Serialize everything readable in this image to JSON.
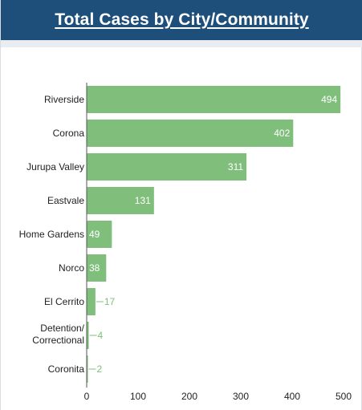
{
  "header": {
    "title": "Total Cases by City/Community"
  },
  "colors": {
    "header_bg": "#1e4f7a",
    "bar": "#7fbf7b",
    "axis": "#555555"
  },
  "chart_data": {
    "type": "bar",
    "orientation": "horizontal",
    "title": "Total Cases by City/Community",
    "categories": [
      "Riverside",
      "Corona",
      "Jurupa Valley",
      "Eastvale",
      "Home Gardens",
      "Norco",
      "El Cerrito",
      "Detention/ Correctional",
      "Coronita"
    ],
    "values": [
      494,
      402,
      311,
      131,
      49,
      38,
      17,
      4,
      2
    ],
    "xlim": [
      0,
      500
    ],
    "xticks": [
      0,
      100,
      200,
      300,
      400,
      500
    ],
    "grid": false,
    "legend": "none"
  }
}
